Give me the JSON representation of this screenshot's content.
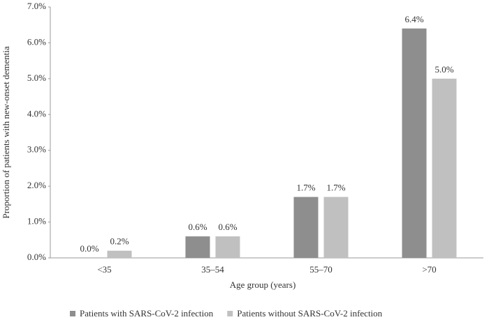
{
  "chart_data": {
    "type": "bar",
    "x_label": "Age group (years)",
    "y_label": "Proportion of patients with new-onset dementia",
    "categories": [
      "<35",
      "35–54",
      "55–70",
      ">70"
    ],
    "series": [
      {
        "name": "Patients with SARS-CoV-2 infection",
        "color": "#8e8e8e",
        "values": [
          0.0,
          0.6,
          1.7,
          6.4
        ],
        "value_labels": [
          "0.0%",
          "0.6%",
          "1.7%",
          "6.4%"
        ]
      },
      {
        "name": "Patients without SARS-CoV-2 infection",
        "color": "#c0c0c0",
        "values": [
          0.2,
          0.6,
          1.7,
          5.0
        ],
        "value_labels": [
          "0.2%",
          "0.6%",
          "1.7%",
          "5.0%"
        ]
      }
    ],
    "ylim": [
      0,
      7
    ],
    "yticks": [
      {
        "value": 0,
        "label": "0.0%"
      },
      {
        "value": 1,
        "label": "1.0%"
      },
      {
        "value": 2,
        "label": "2.0%"
      },
      {
        "value": 3,
        "label": "3.0%"
      },
      {
        "value": 4,
        "label": "4.0%"
      },
      {
        "value": 5,
        "label": "5.0%"
      },
      {
        "value": 6,
        "label": "6.0%"
      },
      {
        "value": 7,
        "label": "7.0%"
      }
    ],
    "grid": false,
    "legend": "bottom"
  }
}
